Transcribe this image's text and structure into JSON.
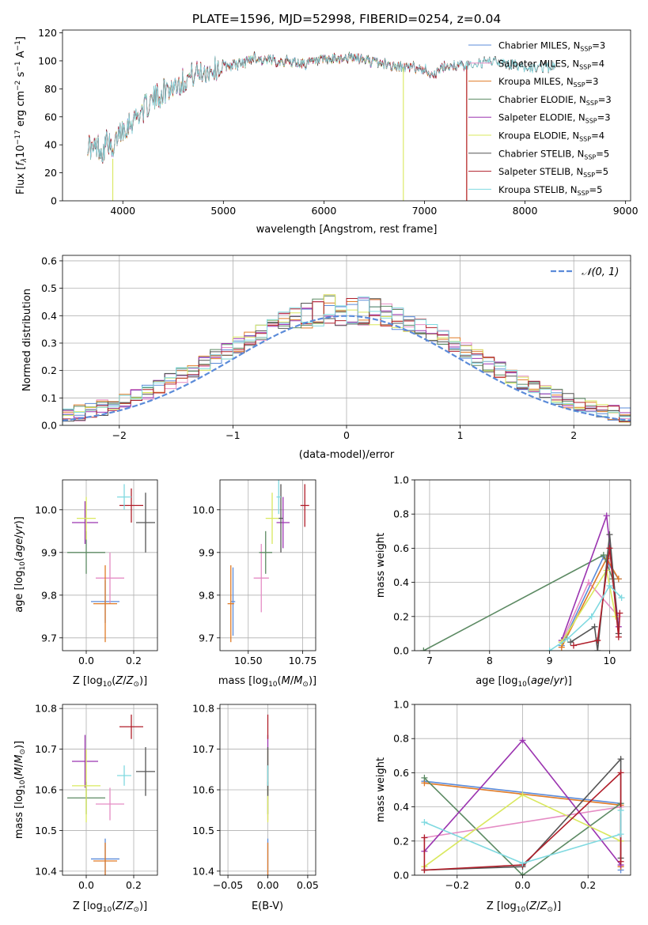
{
  "figure_title": "PLATE=1596, MJD=52998, FIBERID=0254, z=0.04",
  "colors": {
    "Chabrier MILES": "#5b8bd9",
    "Salpeter MILES": "#e58cc4",
    "Kroupa MILES": "#e07b27",
    "Chabrier ELODIE": "#5c8a63",
    "Salpeter ELODIE": "#9b34b0",
    "Kroupa ELODIE": "#d9e85e",
    "Chabrier STELIB": "#555555",
    "Salpeter STELIB": "#b01e2a",
    "Kroupa STELIB": "#7fd9e0",
    "normal_curve": "#5b8bd9"
  },
  "chart_data": [
    {
      "id": "spectrum",
      "type": "line",
      "title": "PLATE=1596, MJD=52998, FIBERID=0254, z=0.04",
      "xlabel": "wavelength [Angstrom, rest frame]",
      "ylabel": "Flux [f_λ 10^-17 erg cm^-2 s^-1 A^-1]",
      "xlim": [
        3400,
        9050
      ],
      "ylim": [
        0,
        122
      ],
      "xticks": [
        4000,
        5000,
        6000,
        7000,
        8000,
        9000
      ],
      "yticks": [
        0,
        20,
        40,
        60,
        80,
        100,
        120
      ],
      "grid": false,
      "legend_position": "top-right",
      "legend": [
        {
          "name": "Chabrier MILES",
          "nssp": "3"
        },
        {
          "name": "Salpeter MILES",
          "nssp": "4"
        },
        {
          "name": "Kroupa MILES",
          "nssp": "3"
        },
        {
          "name": "Chabrier ELODIE",
          "nssp": "3"
        },
        {
          "name": "Salpeter ELODIE",
          "nssp": "3"
        },
        {
          "name": "Kroupa ELODIE",
          "nssp": "4"
        },
        {
          "name": "Chabrier STELIB",
          "nssp": "5"
        },
        {
          "name": "Salpeter STELIB",
          "nssp": "5"
        },
        {
          "name": "Kroupa STELIB",
          "nssp": "5"
        }
      ],
      "continuum": {
        "x": [
          3650,
          3700,
          3750,
          3800,
          3850,
          3900,
          3950,
          4000,
          4100,
          4200,
          4300,
          4400,
          4500,
          4600,
          4700,
          4800,
          4900,
          5000,
          5100,
          5200,
          5300,
          5400,
          5500,
          5600,
          5700,
          5800,
          5900,
          6000,
          6100,
          6200,
          6300,
          6400,
          6500,
          6600,
          6700,
          6800,
          6900,
          7000,
          7100,
          7200,
          7300,
          7400,
          7500,
          7600,
          7700,
          7800,
          7900,
          8000,
          8100,
          8200,
          8300
        ],
        "y": [
          42,
          35,
          40,
          35,
          45,
          30,
          48,
          52,
          58,
          65,
          72,
          78,
          82,
          86,
          90,
          92,
          94,
          96,
          97,
          98,
          103,
          100,
          100,
          100,
          99,
          98,
          99,
          100,
          101,
          102,
          102,
          101,
          99,
          98,
          96,
          95,
          95,
          94,
          90,
          96,
          97,
          96,
          98,
          99,
          100,
          98,
          97,
          96,
          95,
          96,
          95
        ]
      },
      "model_ends_x": {
        "Chabrier MILES": 7400,
        "Salpeter MILES": 7400,
        "Kroupa MILES": 7400,
        "Chabrier ELODIE": 6800,
        "Salpeter ELODIE": 6800,
        "Kroupa ELODIE": 6800,
        "Chabrier STELIB": 8300,
        "Salpeter STELIB": 7400,
        "Kroupa STELIB": 8300
      },
      "drops": [
        {
          "series": "Kroupa ELODIE",
          "x": 3900
        },
        {
          "series": "Kroupa ELODIE",
          "x": 6790
        },
        {
          "series": "Kroupa MILES",
          "x": 7420
        },
        {
          "series": "Salpeter STELIB",
          "x": 7420
        }
      ]
    },
    {
      "id": "residuals",
      "type": "histogram",
      "xlabel": "(data-model)/error",
      "ylabel": "Normed distribution",
      "xlim": [
        -2.5,
        2.5
      ],
      "ylim": [
        0,
        0.62
      ],
      "xticks": [
        -2,
        -1,
        0,
        1,
        2
      ],
      "yticks": [
        0.0,
        0.1,
        0.2,
        0.3,
        0.4,
        0.5,
        0.6
      ],
      "grid": true,
      "legend_position": "top-right",
      "legend": [
        "𝒩(0, 1)"
      ],
      "bin_width": 0.1,
      "bin_start": -2.5,
      "reference_curve": {
        "name": "𝒩(0, 1)",
        "mean": 0,
        "sigma": 1
      }
    },
    {
      "id": "age_vs_Z",
      "type": "scatter_errorbar",
      "xlabel": "Z [log10(Z/Z☉)]",
      "ylabel": "age [log10(age/yr)]",
      "xlim": [
        -0.1,
        0.3
      ],
      "ylim": [
        9.67,
        10.07
      ],
      "xticks": [
        0.0,
        0.2
      ],
      "yticks": [
        9.7,
        9.8,
        9.9,
        10.0
      ],
      "grid": true,
      "points": [
        {
          "series": "Chabrier MILES",
          "x": 0.08,
          "xerr": 0.06,
          "y": 9.785,
          "yerr": 0.05
        },
        {
          "series": "Salpeter MILES",
          "x": 0.1,
          "xerr": 0.06,
          "y": 9.84,
          "yerr": 0.06
        },
        {
          "series": "Kroupa MILES",
          "x": 0.08,
          "xerr": 0.05,
          "y": 9.78,
          "yerr": 0.09
        },
        {
          "series": "Chabrier ELODIE",
          "x": 0.0,
          "xerr": 0.08,
          "y": 9.9,
          "yerr": 0.05
        },
        {
          "series": "Salpeter ELODIE",
          "x": -0.005,
          "xerr": 0.055,
          "y": 9.97,
          "yerr": 0.05
        },
        {
          "series": "Kroupa ELODIE",
          "x": 0.0,
          "xerr": 0.04,
          "y": 9.98,
          "yerr": 0.05
        },
        {
          "series": "Chabrier STELIB",
          "x": 0.25,
          "xerr": 0.04,
          "y": 9.97,
          "yerr": 0.07
        },
        {
          "series": "Salpeter STELIB",
          "x": 0.19,
          "xerr": 0.05,
          "y": 10.01,
          "yerr": 0.04
        },
        {
          "series": "Kroupa STELIB",
          "x": 0.16,
          "xerr": 0.03,
          "y": 10.03,
          "yerr": 0.03
        }
      ]
    },
    {
      "id": "age_vs_mass",
      "type": "scatter_errorbar",
      "xlabel": "mass [log10(M/M☉)]",
      "ylabel": "",
      "xlim": [
        10.37,
        10.81
      ],
      "ylim": [
        9.67,
        10.07
      ],
      "xticks": [
        10.5,
        10.75
      ],
      "xtick_labels": [
        "10.50",
        "10.75"
      ],
      "yticks": [
        9.7,
        9.8,
        9.9,
        10.0
      ],
      "grid": true,
      "points": [
        {
          "series": "Chabrier MILES",
          "x": 10.43,
          "xerr": 0.01,
          "y": 9.785,
          "yerr": 0.08
        },
        {
          "series": "Salpeter MILES",
          "x": 10.56,
          "xerr": 0.035,
          "y": 9.84,
          "yerr": 0.08
        },
        {
          "series": "Kroupa MILES",
          "x": 10.42,
          "xerr": 0.015,
          "y": 9.78,
          "yerr": 0.09
        },
        {
          "series": "Chabrier ELODIE",
          "x": 10.58,
          "xerr": 0.03,
          "y": 9.9,
          "yerr": 0.05
        },
        {
          "series": "Salpeter ELODIE",
          "x": 10.66,
          "xerr": 0.03,
          "y": 9.97,
          "yerr": 0.06
        },
        {
          "series": "Kroupa ELODIE",
          "x": 10.61,
          "xerr": 0.03,
          "y": 9.98,
          "yerr": 0.06
        },
        {
          "series": "Chabrier STELIB",
          "x": 10.65,
          "xerr": 0.01,
          "y": 9.98,
          "yerr": 0.08
        },
        {
          "series": "Salpeter STELIB",
          "x": 10.76,
          "xerr": 0.02,
          "y": 10.01,
          "yerr": 0.05
        },
        {
          "series": "Kroupa STELIB",
          "x": 10.64,
          "xerr": 0.01,
          "y": 10.03,
          "yerr": 0.04
        }
      ]
    },
    {
      "id": "weight_vs_age",
      "type": "line",
      "xlabel": "age [log10(age/yr)]",
      "ylabel": "mass weight",
      "xlim": [
        6.75,
        10.35
      ],
      "ylim": [
        0,
        1
      ],
      "xticks": [
        7,
        8,
        9,
        10
      ],
      "yticks": [
        0,
        0.2,
        0.4,
        0.6,
        0.8,
        1.0
      ],
      "grid": true,
      "series": [
        {
          "name": "Chabrier MILES",
          "x": [
            9.2,
            9.9,
            10.15
          ],
          "y": [
            0.03,
            0.55,
            0.42
          ]
        },
        {
          "name": "Salpeter MILES",
          "x": [
            9.2,
            9.65,
            10.15
          ],
          "y": [
            0.05,
            0.4,
            0.2
          ]
        },
        {
          "name": "Kroupa MILES",
          "x": [
            9.2,
            9.95,
            10.15
          ],
          "y": [
            0.02,
            0.54,
            0.42
          ]
        },
        {
          "name": "Chabrier ELODIE",
          "x": [
            6.9,
            9.9,
            10.05
          ],
          "y": [
            0.0,
            0.56,
            0.42
          ]
        },
        {
          "name": "Salpeter ELODIE",
          "x": [
            9.2,
            9.95,
            10.15
          ],
          "y": [
            0.06,
            0.79,
            0.14
          ]
        },
        {
          "name": "Kroupa ELODIE",
          "x": [
            9.2,
            9.95,
            10.1
          ],
          "y": [
            0.05,
            0.47,
            0.2
          ]
        },
        {
          "name": "Chabrier STELIB",
          "x": [
            9.35,
            9.75,
            9.8,
            10.0,
            10.15
          ],
          "y": [
            0.05,
            0.14,
            0.0,
            0.68,
            0.1
          ]
        },
        {
          "name": "Salpeter STELIB",
          "x": [
            9.4,
            9.8,
            10.0,
            10.15,
            10.17
          ],
          "y": [
            0.03,
            0.06,
            0.6,
            0.08,
            0.22
          ]
        },
        {
          "name": "Kroupa STELIB",
          "x": [
            9.0,
            9.3,
            9.7,
            10.0,
            10.2
          ],
          "y": [
            0.0,
            0.07,
            0.2,
            0.38,
            0.31
          ]
        }
      ]
    },
    {
      "id": "mass_vs_Z",
      "type": "scatter_errorbar",
      "xlabel": "Z [log10(Z/Z☉)]",
      "ylabel": "mass [log10(M/M☉)]",
      "xlim": [
        -0.1,
        0.3
      ],
      "ylim": [
        10.39,
        10.81
      ],
      "xticks": [
        0.0,
        0.2
      ],
      "yticks": [
        10.4,
        10.5,
        10.6,
        10.7,
        10.8
      ],
      "grid": true,
      "points": [
        {
          "series": "Chabrier MILES",
          "x": 0.08,
          "xerr": 0.06,
          "y": 10.43,
          "yerr": 0.05
        },
        {
          "series": "Salpeter MILES",
          "x": 0.1,
          "xerr": 0.06,
          "y": 10.565,
          "yerr": 0.04
        },
        {
          "series": "Kroupa MILES",
          "x": 0.08,
          "xerr": 0.05,
          "y": 10.425,
          "yerr": 0.045
        },
        {
          "series": "Chabrier ELODIE",
          "x": 0.0,
          "xerr": 0.08,
          "y": 10.58,
          "yerr": 0.04
        },
        {
          "series": "Salpeter ELODIE",
          "x": -0.005,
          "xerr": 0.055,
          "y": 10.67,
          "yerr": 0.065
        },
        {
          "series": "Kroupa ELODIE",
          "x": 0.0,
          "xerr": 0.06,
          "y": 10.61,
          "yerr": 0.09
        },
        {
          "series": "Chabrier STELIB",
          "x": 0.25,
          "xerr": 0.04,
          "y": 10.645,
          "yerr": 0.06
        },
        {
          "series": "Salpeter STELIB",
          "x": 0.19,
          "xerr": 0.05,
          "y": 10.755,
          "yerr": 0.03
        },
        {
          "series": "Kroupa STELIB",
          "x": 0.16,
          "xerr": 0.03,
          "y": 10.635,
          "yerr": 0.025
        }
      ]
    },
    {
      "id": "mass_vs_ebv",
      "type": "scatter_errorbar",
      "xlabel": "E(B-V)",
      "ylabel": "",
      "xlim": [
        -0.06,
        0.06
      ],
      "ylim": [
        10.39,
        10.81
      ],
      "xticks": [
        -0.05,
        0.0,
        0.05
      ],
      "xtick_labels": [
        "−0.05",
        "0.00",
        "0.05"
      ],
      "yticks": [
        10.4,
        10.5,
        10.6,
        10.7,
        10.8
      ],
      "grid": true,
      "points": [
        {
          "series": "Chabrier MILES",
          "x": 0,
          "xerr": 0,
          "y": 10.43,
          "yerr": 0.05
        },
        {
          "series": "Salpeter MILES",
          "x": 0,
          "xerr": 0,
          "y": 10.565,
          "yerr": 0.04
        },
        {
          "series": "Kroupa MILES",
          "x": 0,
          "xerr": 0,
          "y": 10.425,
          "yerr": 0.045
        },
        {
          "series": "Chabrier ELODIE",
          "x": 0,
          "xerr": 0,
          "y": 10.58,
          "yerr": 0.04
        },
        {
          "series": "Salpeter ELODIE",
          "x": 0,
          "xerr": 0,
          "y": 10.67,
          "yerr": 0.065
        },
        {
          "series": "Kroupa ELODIE",
          "x": 0,
          "xerr": 0,
          "y": 10.61,
          "yerr": 0.09
        },
        {
          "series": "Chabrier STELIB",
          "x": 0,
          "xerr": 0,
          "y": 10.645,
          "yerr": 0.06
        },
        {
          "series": "Salpeter STELIB",
          "x": 0,
          "xerr": 0,
          "y": 10.755,
          "yerr": 0.03
        },
        {
          "series": "Kroupa STELIB",
          "x": 0,
          "xerr": 0,
          "y": 10.635,
          "yerr": 0.025
        }
      ]
    },
    {
      "id": "weight_vs_Z",
      "type": "line",
      "xlabel": "Z [log10(Z/Z☉)]",
      "ylabel": "mass weight",
      "xlim": [
        -0.33,
        0.33
      ],
      "ylim": [
        0,
        1
      ],
      "xticks": [
        -0.2,
        0.0,
        0.2
      ],
      "xtick_labels": [
        "−0.2",
        "0.0",
        "0.2"
      ],
      "yticks": [
        0,
        0.2,
        0.4,
        0.6,
        0.8,
        1.0
      ],
      "grid": true,
      "series": [
        {
          "name": "Chabrier MILES",
          "x": [
            -0.3,
            0.3,
            0.3
          ],
          "y": [
            0.55,
            0.42,
            0.03
          ]
        },
        {
          "name": "Salpeter MILES",
          "x": [
            -0.3,
            0.3,
            0.3
          ],
          "y": [
            0.22,
            0.4,
            0.05
          ]
        },
        {
          "name": "Kroupa MILES",
          "x": [
            -0.3,
            0.3,
            0.3
          ],
          "y": [
            0.54,
            0.41,
            0.05
          ]
        },
        {
          "name": "Chabrier ELODIE",
          "x": [
            -0.3,
            0.0,
            0.3
          ],
          "y": [
            0.57,
            0.0,
            0.42
          ]
        },
        {
          "name": "Salpeter ELODIE",
          "x": [
            -0.3,
            0.0,
            0.3
          ],
          "y": [
            0.14,
            0.79,
            0.06
          ]
        },
        {
          "name": "Kroupa ELODIE",
          "x": [
            -0.3,
            0.0,
            0.3
          ],
          "y": [
            0.05,
            0.47,
            0.2
          ]
        },
        {
          "name": "Chabrier STELIB",
          "x": [
            -0.3,
            0.0,
            0.3,
            0.3
          ],
          "y": [
            0.03,
            0.05,
            0.68,
            0.1
          ]
        },
        {
          "name": "Salpeter STELIB",
          "x": [
            -0.3,
            -0.3,
            0.0,
            0.3,
            0.3
          ],
          "y": [
            0.22,
            0.03,
            0.06,
            0.6,
            0.08
          ]
        },
        {
          "name": "Kroupa STELIB",
          "x": [
            -0.3,
            0.0,
            0.3,
            0.3
          ],
          "y": [
            0.31,
            0.07,
            0.24,
            0.38
          ]
        }
      ]
    }
  ]
}
